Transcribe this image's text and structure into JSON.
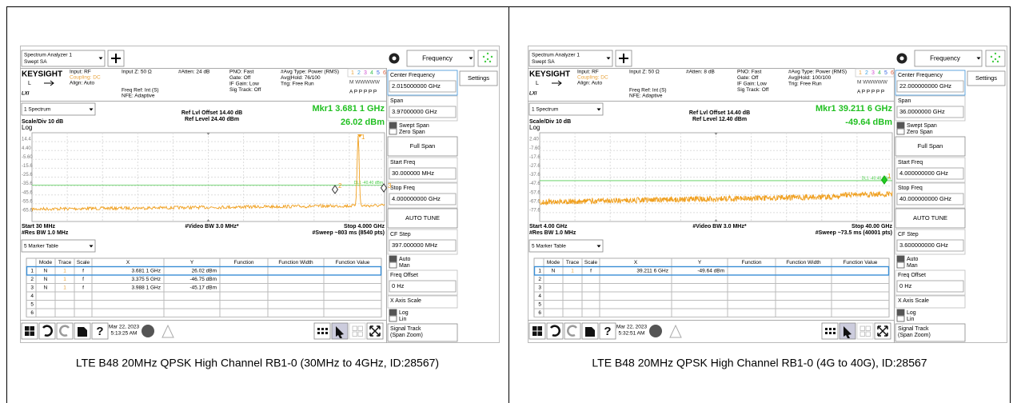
{
  "cells": [
    {
      "caption": "LTE B48 20MHz QPSK High Channel RB1-0 (30MHz to 4GHz, ID:28567)",
      "screen": {
        "title": [
          "Spectrum Analyzer 1",
          "Swept SA"
        ],
        "menu": "Frequency",
        "settings": "Settings",
        "brand": "KEYSIGHT",
        "l": "L",
        "lxi": "LXI",
        "input": [
          "Input: RF",
          "Coupling: DC",
          "Align: Auto"
        ],
        "input_z": "Input Z: 50 Ω",
        "freq_ref": [
          "Freq Ref: Int (S)",
          "NFE: Adaptive"
        ],
        "atten": "#Atten: 24 dB",
        "gate": [
          "PNO: Fast",
          "Gate: Off",
          "IF Gain: Low",
          "Sig Track: Off"
        ],
        "avg": [
          "#Avg Type: Power (RMS)",
          "Avg|Hold: 76/100",
          "Trig: Free Run"
        ],
        "traces": [
          "1",
          "2",
          "3",
          "4",
          "5",
          "6"
        ],
        "trace_types": [
          "M WWWWW",
          "A P P P P P"
        ],
        "window": "1 Spectrum",
        "ref": [
          "Ref Lvl Offset 14.40 dB",
          "Ref Level 24.40 dBm"
        ],
        "marker": [
          "Mkr1  3.681 1 GHz",
          "26.02 dBm"
        ],
        "scale": [
          "Scale/Div 10 dB",
          "Log"
        ],
        "ylabels": [
          "14.4",
          "4.40",
          "-5.60",
          "-15.6",
          "-25.6",
          "-35.6",
          "-45.6",
          "-55.6",
          "-65.6"
        ],
        "footer_left": [
          "Start 30 MHz",
          "#Res BW 1.0 MHz"
        ],
        "footer_center": "#Video BW 3.0 MHz*",
        "footer_right": [
          "Stop 4.000 GHz",
          "#Sweep ~803 ms (8540 pts)"
        ],
        "display_line": "DL1 -40.40 dBm",
        "marker_labels": [
          "1",
          "2",
          "3"
        ],
        "table_select": "5 Marker Table",
        "table": {
          "header": [
            "Mode",
            "Trace",
            "Scale",
            "X",
            "Y",
            "Function",
            "Function Width",
            "Function Value"
          ],
          "rows": [
            [
              "1",
              "N",
              "1",
              "f",
              "3.681 1 GHz",
              "26.02 dBm"
            ],
            [
              "2",
              "N",
              "1",
              "f",
              "3.375 5 GHz",
              "-46.75 dBm"
            ],
            [
              "3",
              "N",
              "1",
              "f",
              "3.988 1 GHz",
              "-45.17 dBm"
            ],
            [
              "4"
            ],
            [
              "5"
            ],
            [
              "6"
            ]
          ]
        },
        "date": [
          "Mar 22, 2023",
          "5:13:25 AM"
        ],
        "panel": [
          {
            "label": "Center Frequency",
            "value": "2.015000000 GHz"
          },
          {
            "label": "Span",
            "value": "3.97000000 GHz"
          },
          {
            "radio": [
              "Swept Span",
              "Zero Span"
            ]
          },
          {
            "button": [
              "Full Span"
            ]
          },
          {
            "label": "Start Freq",
            "value": "30.000000 MHz"
          },
          {
            "label": "Stop Freq",
            "value": "4.000000000 GHz"
          },
          {
            "button": [
              "AUTO TUNE"
            ]
          },
          {
            "label": "CF Step",
            "value": "397.000000 MHz"
          },
          {
            "radio": [
              "Auto",
              "Man"
            ]
          },
          {
            "label": "Freq Offset",
            "value": "0 Hz"
          },
          {
            "label": "X Axis Scale"
          },
          {
            "radio": [
              "Log",
              "Lin"
            ]
          },
          {
            "button": [
              "Signal Track",
              "(Span Zoom)"
            ]
          }
        ]
      }
    },
    {
      "caption": "LTE B48 20MHz QPSK High Channel RB1-0 (4G to 40G), ID:28567",
      "screen": {
        "title": [
          "Spectrum Analyzer 1",
          "Swept SA"
        ],
        "menu": "Frequency",
        "settings": "Settings",
        "brand": "KEYSIGHT",
        "l": "L",
        "lxi": "LXI",
        "input": [
          "Input: RF",
          "Coupling: DC",
          "Align: Auto"
        ],
        "input_z": "Input Z: 50 Ω",
        "freq_ref": [
          "Freq Ref: Int (S)",
          "NFE: Adaptive"
        ],
        "atten": "#Atten: 8 dB",
        "gate": [
          "PNO: Fast",
          "Gate: Off",
          "IF Gain: Low",
          "Sig Track: Off"
        ],
        "avg": [
          "#Avg Type: Power (RMS)",
          "Avg|Hold: 100/100",
          "Trig: Free Run"
        ],
        "traces": [
          "1",
          "2",
          "3",
          "4",
          "5",
          "6"
        ],
        "trace_types": [
          "M WWWWW",
          "A P P P P P"
        ],
        "window": "1 Spectrum",
        "ref": [
          "Ref Lvl Offset 14.40 dB",
          "Ref Level 12.40 dBm"
        ],
        "marker": [
          "Mkr1  39.211 6 GHz",
          "-49.64 dBm"
        ],
        "scale": [
          "Scale/Div 10 dB",
          "Log"
        ],
        "ylabels": [
          "2.40",
          "-7.60",
          "-17.6",
          "-27.6",
          "-37.6",
          "-47.6",
          "-57.6",
          "-67.6",
          "-77.6"
        ],
        "footer_left": [
          "Start 4.00 GHz",
          "#Res BW 1.0 MHz"
        ],
        "footer_center": "#Video BW 3.0 MHz*",
        "footer_right": [
          "Stop 40.00 GHz",
          "#Sweep ~73.5 ms (40001 pts)"
        ],
        "display_line": "DL1 -40.40 dBm",
        "marker_labels": [
          "1"
        ],
        "table_select": "5 Marker Table",
        "table": {
          "header": [
            "Mode",
            "Trace",
            "Scale",
            "X",
            "Y",
            "Function",
            "Function Width",
            "Function Value"
          ],
          "rows": [
            [
              "1",
              "N",
              "1",
              "f",
              "39.211 6 GHz",
              "-49.64 dBm"
            ],
            [
              "2"
            ],
            [
              "3"
            ],
            [
              "4"
            ],
            [
              "5"
            ],
            [
              "6"
            ]
          ]
        },
        "date": [
          "Mar 22, 2023",
          "5:32:51 AM"
        ],
        "panel": [
          {
            "label": "Center Frequency",
            "value": "22.000000000 GHz"
          },
          {
            "label": "Span",
            "value": "36.0000000 GHz"
          },
          {
            "radio": [
              "Swept Span",
              "Zero Span"
            ]
          },
          {
            "button": [
              "Full Span"
            ]
          },
          {
            "label": "Start Freq",
            "value": "4.000000000 GHz"
          },
          {
            "label": "Stop Freq",
            "value": "40.000000000 GHz"
          },
          {
            "button": [
              "AUTO TUNE"
            ]
          },
          {
            "label": "CF Step",
            "value": "3.600000000 GHz"
          },
          {
            "radio": [
              "Auto",
              "Man"
            ]
          },
          {
            "label": "Freq Offset",
            "value": "0 Hz"
          },
          {
            "label": "X Axis Scale"
          },
          {
            "radio": [
              "Log",
              "Lin"
            ]
          },
          {
            "button": [
              "Signal Track",
              "(Span Zoom)"
            ]
          }
        ]
      }
    }
  ]
}
